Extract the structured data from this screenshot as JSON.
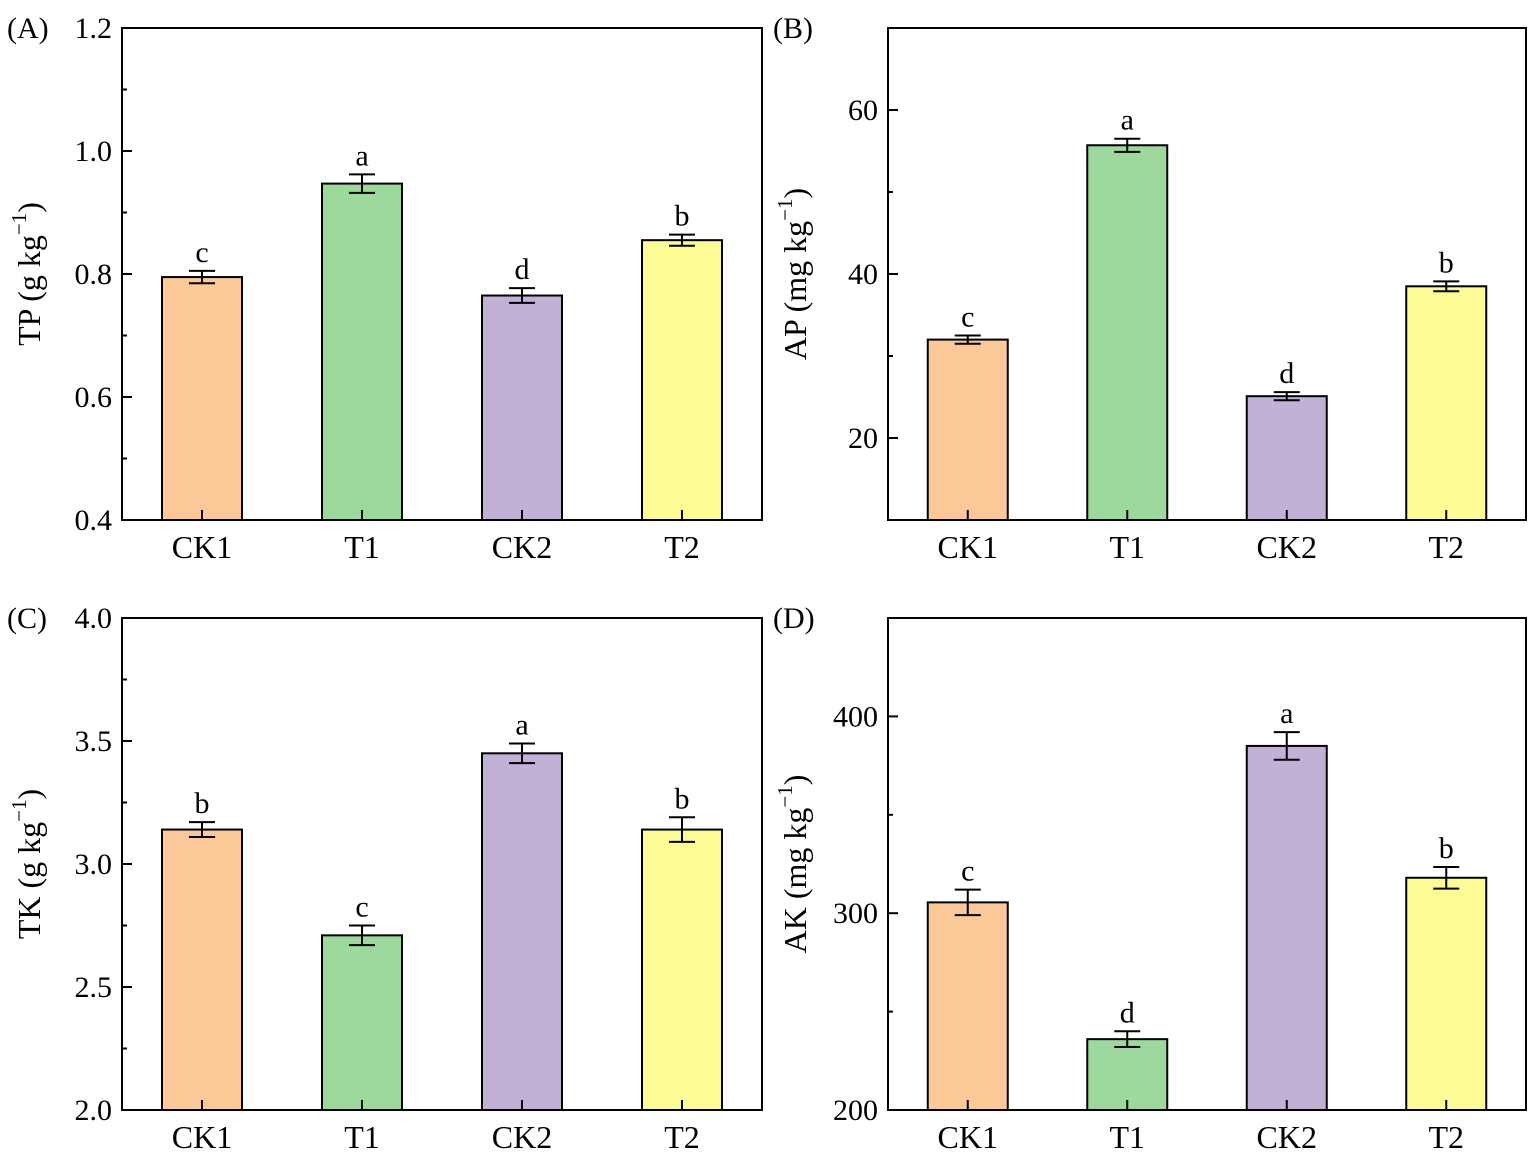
{
  "figure": {
    "colors": {
      "CK1": "#fbc898",
      "T1": "#9dd99d",
      "CK2": "#c2b1d7",
      "T2": "#fdfc94",
      "stroke": "#000000"
    }
  },
  "chart_data": [
    {
      "type": "bar",
      "panel": "(A)",
      "ylabel": "TP (g kg",
      "ylabel_sup": "−1",
      "ylabel_close": ")",
      "ylim": [
        0.4,
        1.2
      ],
      "yticks": [
        0.4,
        0.6,
        0.8,
        1.0,
        1.2
      ],
      "ytick_labels": [
        "0.4",
        "0.6",
        "0.8",
        "1.0",
        "1.2"
      ],
      "categories": [
        "CK1",
        "T1",
        "CK2",
        "T2"
      ],
      "values": [
        0.795,
        0.947,
        0.765,
        0.855
      ],
      "errors": [
        0.01,
        0.015,
        0.012,
        0.009
      ],
      "significance": [
        "c",
        "a",
        "d",
        "b"
      ]
    },
    {
      "type": "bar",
      "panel": "(B)",
      "ylabel": "AP (mg kg",
      "ylabel_sup": "−1",
      "ylabel_close": ")",
      "ylim": [
        10,
        70
      ],
      "yticks": [
        20,
        40,
        60
      ],
      "ytick_labels": [
        "20",
        "40",
        "60"
      ],
      "categories": [
        "CK1",
        "T1",
        "CK2",
        "T2"
      ],
      "values": [
        32.0,
        55.7,
        25.1,
        38.5
      ],
      "errors": [
        0.5,
        0.8,
        0.5,
        0.6
      ],
      "significance": [
        "c",
        "a",
        "d",
        "b"
      ]
    },
    {
      "type": "bar",
      "panel": "(C)",
      "ylabel": "TK (g kg",
      "ylabel_sup": "−1",
      "ylabel_close": ")",
      "ylim": [
        2.0,
        4.0
      ],
      "yticks": [
        2.0,
        2.5,
        3.0,
        3.5,
        4.0
      ],
      "ytick_labels": [
        "2.0",
        "2.5",
        "3.0",
        "3.5",
        "4.0"
      ],
      "categories": [
        "CK1",
        "T1",
        "CK2",
        "T2"
      ],
      "values": [
        3.14,
        2.71,
        3.45,
        3.14
      ],
      "errors": [
        0.03,
        0.04,
        0.04,
        0.05
      ],
      "significance": [
        "b",
        "c",
        "a",
        "b"
      ]
    },
    {
      "type": "bar",
      "panel": "(D)",
      "ylabel": "AK (mg kg",
      "ylabel_sup": "−1",
      "ylabel_close": ")",
      "ylim": [
        200,
        450
      ],
      "yticks": [
        200,
        300,
        400
      ],
      "ytick_labels": [
        "200",
        "300",
        "400"
      ],
      "categories": [
        "CK1",
        "T1",
        "CK2",
        "T2"
      ],
      "values": [
        305.5,
        236.0,
        385.0,
        318.0
      ],
      "errors": [
        6.5,
        4.0,
        7.0,
        5.5
      ],
      "significance": [
        "c",
        "d",
        "a",
        "b"
      ]
    }
  ]
}
